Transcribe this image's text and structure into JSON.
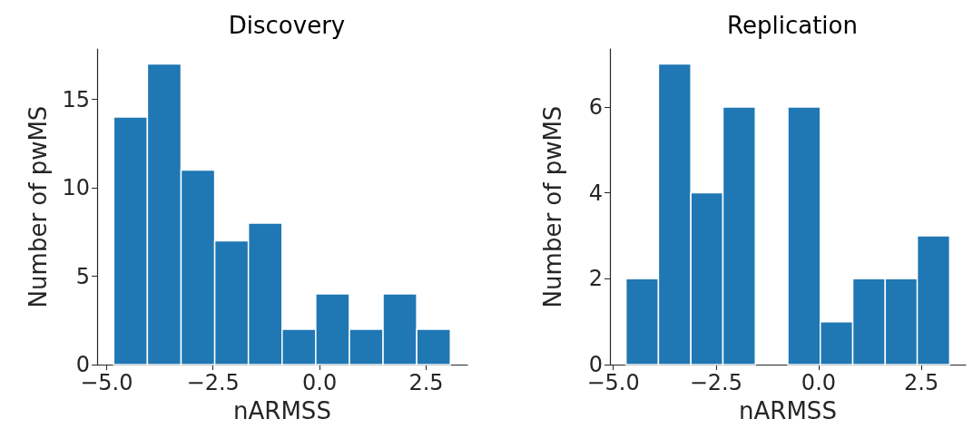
{
  "chart_data": [
    {
      "type": "histogram",
      "title": "Discovery",
      "xlabel": "nARMSS",
      "ylabel": "Number of pwMS",
      "bins": [
        -4.83,
        -4.04,
        -3.25,
        -2.46,
        -1.67,
        -0.88,
        -0.09,
        0.7,
        1.49,
        2.28,
        3.07
      ],
      "values": [
        14,
        17,
        11,
        7,
        8,
        2,
        4,
        2,
        4,
        2
      ],
      "color": "#1f77b4",
      "xlim": [
        -5.22,
        3.47
      ],
      "xticks": [
        {
          "value": -5,
          "label": "−5.0"
        },
        {
          "value": -2.5,
          "label": "−2.5"
        },
        {
          "value": 0,
          "label": "0.0"
        },
        {
          "value": 2.5,
          "label": "2.5"
        }
      ],
      "ylim": [
        0,
        17.85
      ],
      "yticks": [
        0,
        5,
        10,
        15
      ]
    },
    {
      "type": "histogram",
      "title": "Replication",
      "xlabel": "nARMSS",
      "ylabel": "Number of pwMS",
      "bins": [
        -4.69,
        -3.9,
        -3.11,
        -2.33,
        -1.54,
        -0.75,
        0.04,
        0.83,
        1.62,
        2.4,
        3.19
      ],
      "values": [
        2,
        7,
        4,
        6,
        0,
        6,
        1,
        2,
        2,
        3
      ],
      "color": "#1f77b4",
      "xlim": [
        -5.08,
        3.58
      ],
      "xticks": [
        {
          "value": -5,
          "label": "−5.0"
        },
        {
          "value": -2.5,
          "label": "−2.5"
        },
        {
          "value": 0,
          "label": "0.0"
        },
        {
          "value": 2.5,
          "label": "2.5"
        }
      ],
      "ylim": [
        0,
        7.35
      ],
      "yticks": [
        0,
        2,
        4,
        6
      ]
    }
  ]
}
